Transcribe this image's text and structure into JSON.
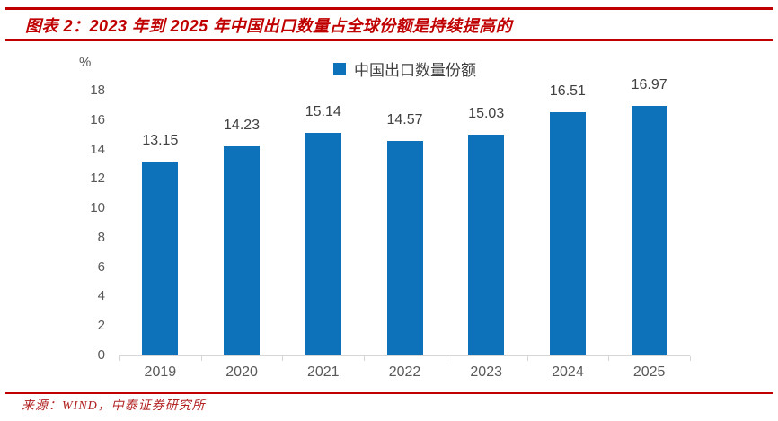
{
  "header": {
    "title": "图表 2：2023 年到 2025 年中国出口数量占全球份额是持续提高的"
  },
  "footer": {
    "source": "来源：WIND，中泰证券研究所"
  },
  "chart_data": {
    "type": "bar",
    "series_name": "中国出口数量份额",
    "categories": [
      "2019",
      "2020",
      "2021",
      "2022",
      "2023",
      "2024",
      "2025"
    ],
    "values": [
      13.15,
      14.23,
      15.14,
      14.57,
      15.03,
      16.51,
      16.97
    ],
    "value_labels": [
      "13.15",
      "14.23",
      "15.14",
      "14.57",
      "15.03",
      "16.51",
      "16.97"
    ],
    "unit_label": "%",
    "ylim": [
      0,
      18
    ],
    "ytick_step": 2,
    "grid": false,
    "legend_position": "top-center",
    "data_labels": true
  },
  "colors": {
    "accent_red": "#C00000",
    "bar_blue": "#0D72BA",
    "axis_text": "#595959",
    "value_text": "#404040",
    "footer_red": "#B22222",
    "axis_line": "#D6D6D6"
  }
}
